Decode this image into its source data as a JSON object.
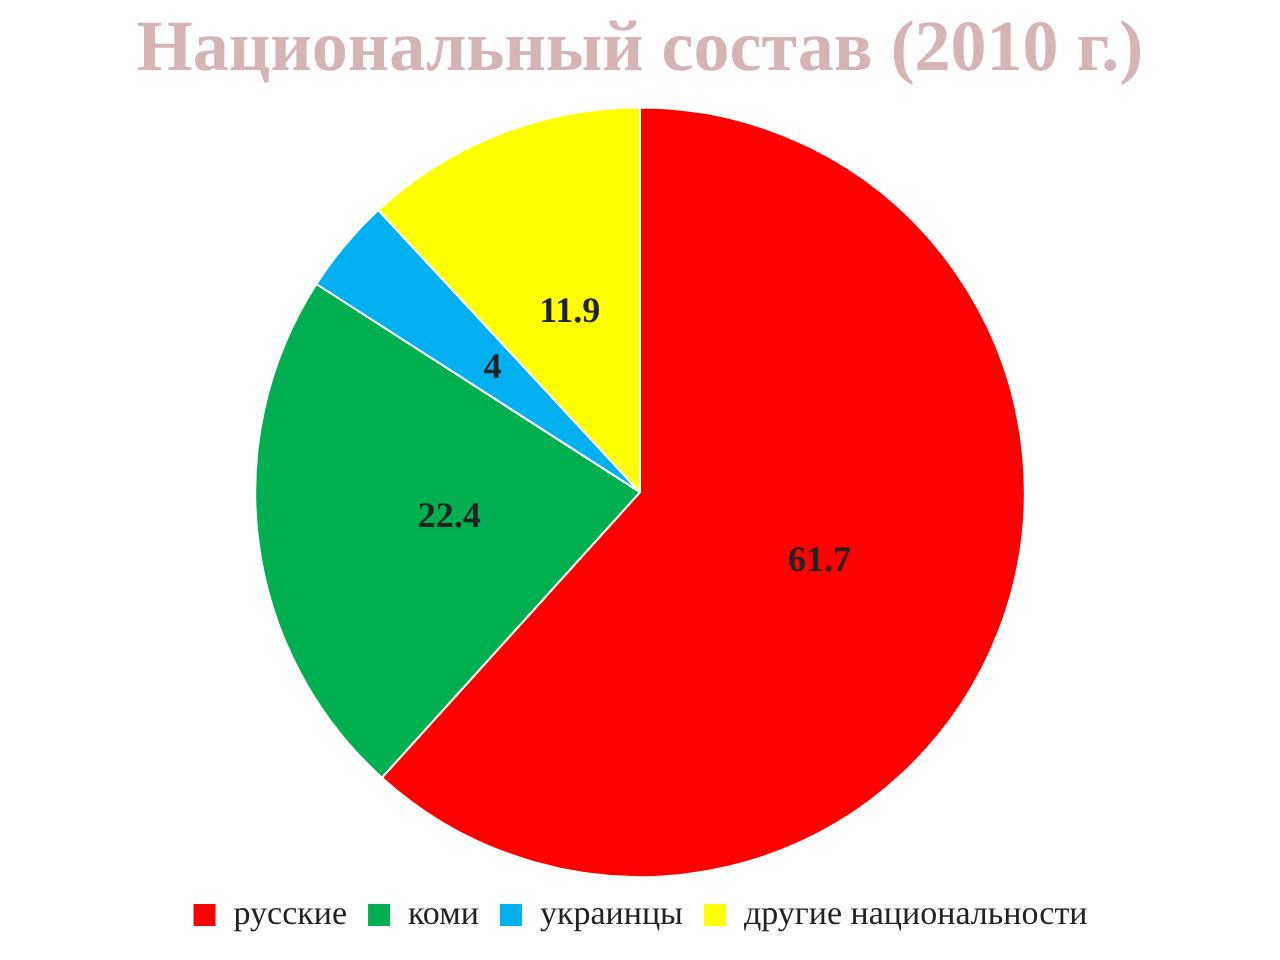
{
  "chart_data": {
    "type": "pie",
    "title": "Национальный состав (2010 г.)",
    "categories": [
      "русские",
      "коми",
      "украинцы",
      "другие национальности"
    ],
    "values": [
      61.7,
      22.4,
      4,
      11.9
    ],
    "colors": [
      "#ff0000",
      "#00b050",
      "#00b0f0",
      "#ffff00"
    ],
    "data_labels": true,
    "legend": "bottom"
  }
}
